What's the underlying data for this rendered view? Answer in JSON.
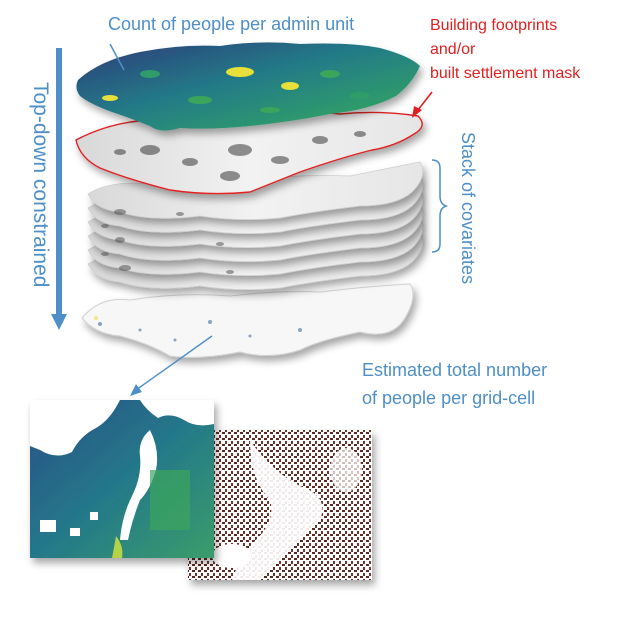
{
  "labels": {
    "admin_unit": "Count of people per admin unit",
    "building_line1": "Building footprints",
    "building_line2": "and/or",
    "building_line3": "built settlement  mask",
    "covariates": "Stack of covariates",
    "topdown": "Top-down constrained",
    "estimated_line1": "Estimated total number",
    "estimated_line2": "of people per grid-cell"
  },
  "colors": {
    "label_blue": "#4e8fc8",
    "label_red": "#e02020",
    "viridis_dark": "#2d3a7a",
    "viridis_teal": "#1f8a8a",
    "viridis_green": "#3ba55c",
    "viridis_yellow": "#e8e03a",
    "building_brown": "#5a2a22",
    "settlement_outline": "#e02020"
  },
  "covariate_layer_count": 6
}
